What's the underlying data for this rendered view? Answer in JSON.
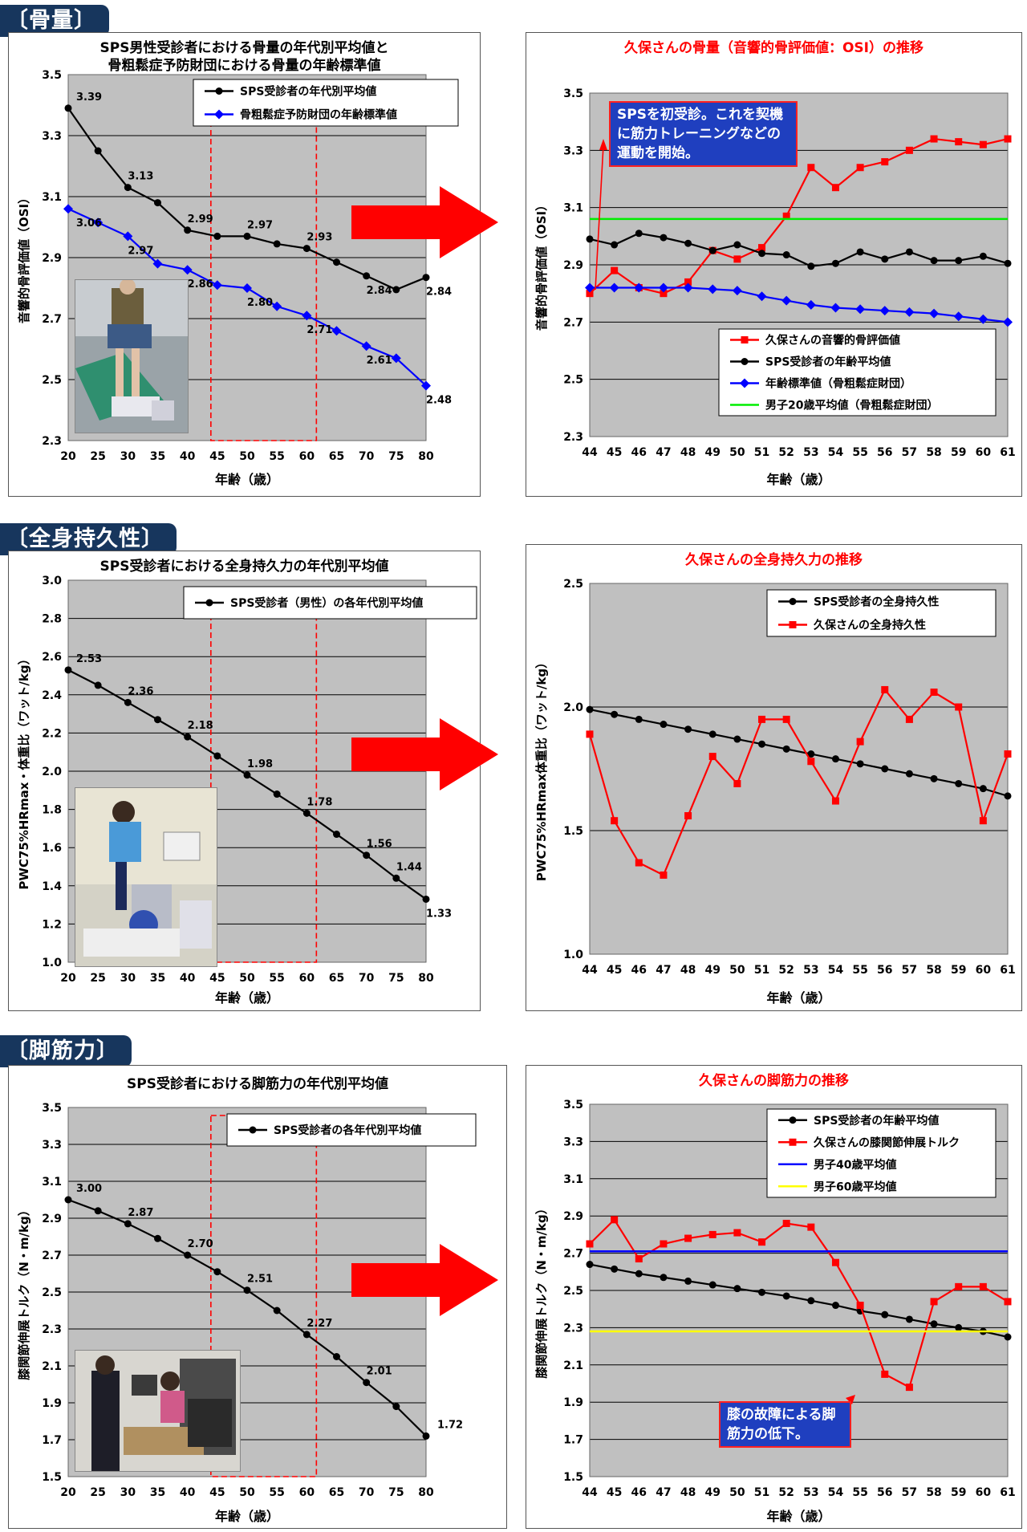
{
  "sections": {
    "bone": "〔骨量〕",
    "endurance": "〔全身持久性〕",
    "leg": "〔脚筋力〕"
  },
  "colors": {
    "plot_bg": "#c0c0c0",
    "black_series": "#000000",
    "red_series": "#ff0000",
    "blue_series": "#0000ff",
    "green_line": "#00ee00",
    "blue_line": "#0000ff",
    "yellow_line": "#ffff00",
    "arrow": "#ff0000",
    "section_label": "#17365d"
  },
  "annotations": {
    "first_visit": "SPSを初受診。これを契機に筋力トレーニングなどの運動を開始。",
    "knee": "膝の故障による脚筋力の低下。"
  },
  "chart_data": [
    {
      "id": "bone_avg",
      "type": "line",
      "title": "SPS男性受診者における骨量の年代別平均値と骨粗鬆症予防財団における骨量の年齢標準値",
      "title_lines": [
        "SPS男性受診者における骨量の年代別平均値と",
        "骨粗鬆症予防財団における骨量の年齢標準値"
      ],
      "title_color": "#000000",
      "xlabel": "年齢（歳）",
      "ylabel": "音響的骨評価値（OSI）",
      "ylim": [
        2.3,
        3.5
      ],
      "yticks": [
        "2.3",
        "2.5",
        "2.7",
        "2.9",
        "3.1",
        "3.3",
        "3.5"
      ],
      "x": [
        "20",
        "25",
        "30",
        "35",
        "40",
        "45",
        "50",
        "55",
        "60",
        "65",
        "70",
        "75",
        "80"
      ],
      "highlight_range": [
        "45",
        "60"
      ],
      "grid": true,
      "legend_position": "top-right",
      "series": [
        {
          "name": "SPS受診者の年代別平均値",
          "color": "#000000",
          "marker": "circle",
          "values": [
            3.39,
            3.25,
            3.13,
            3.08,
            2.99,
            2.97,
            2.97,
            2.945,
            2.93,
            2.885,
            2.84,
            2.795,
            2.835
          ],
          "labels": [
            "3.39",
            "",
            "3.13",
            "",
            "2.99",
            "",
            "2.97",
            "",
            "2.93",
            "",
            "2.84",
            "",
            "2.84"
          ]
        },
        {
          "name": "骨粗鬆症予防財団の年齢標準値",
          "color": "#0000ff",
          "marker": "diamond",
          "values": [
            3.06,
            3.015,
            2.97,
            2.88,
            2.86,
            2.81,
            2.8,
            2.74,
            2.71,
            2.66,
            2.61,
            2.57,
            2.48
          ],
          "labels": [
            "3.06",
            "",
            "2.97",
            "",
            "2.86",
            "",
            "2.80",
            "",
            "2.71",
            "",
            "2.61",
            "",
            "2.48"
          ]
        }
      ]
    },
    {
      "id": "bone_kubo",
      "type": "line",
      "title": "久保さんの骨量（音響的骨評価値：OSI）の推移",
      "title_lines": [
        "久保さんの骨量（音響的骨評価値：OSI）の推移"
      ],
      "title_color": "#ff0000",
      "xlabel": "年齢（歳）",
      "ylabel": "音響的骨評価値（OSI）",
      "ylim": [
        2.3,
        3.5
      ],
      "yticks": [
        "2.3",
        "2.5",
        "2.7",
        "2.9",
        "3.1",
        "3.3",
        "3.5"
      ],
      "x": [
        "44",
        "45",
        "46",
        "47",
        "48",
        "49",
        "50",
        "51",
        "52",
        "53",
        "54",
        "55",
        "56",
        "57",
        "58",
        "59",
        "60",
        "61"
      ],
      "grid": true,
      "legend_position": "bottom-right",
      "series": [
        {
          "name": "久保さんの音響的骨評価値",
          "color": "#ff0000",
          "marker": "square",
          "values": [
            2.8,
            2.88,
            2.82,
            2.8,
            2.84,
            2.95,
            2.92,
            2.96,
            3.07,
            3.24,
            3.17,
            3.24,
            3.26,
            3.3,
            3.34,
            3.33,
            3.32,
            3.34
          ]
        },
        {
          "name": "SPS受診者の年齢平均値",
          "color": "#000000",
          "marker": "circle",
          "values": [
            2.99,
            2.97,
            3.01,
            2.995,
            2.975,
            2.95,
            2.97,
            2.94,
            2.935,
            2.895,
            2.905,
            2.945,
            2.92,
            2.945,
            2.915,
            2.915,
            2.93,
            2.905
          ]
        },
        {
          "name": "年齢標準値（骨粗鬆症財団）",
          "color": "#0000ff",
          "marker": "diamond",
          "values": [
            2.82,
            2.82,
            2.82,
            2.82,
            2.82,
            2.815,
            2.81,
            2.79,
            2.775,
            2.76,
            2.75,
            2.745,
            2.74,
            2.735,
            2.73,
            2.72,
            2.71,
            2.7
          ]
        },
        {
          "name": "男子20歳平均値（骨粗鬆症財団）",
          "color": "#00ee00",
          "marker": "none",
          "constant": 3.06
        }
      ]
    },
    {
      "id": "endurance_avg",
      "type": "line",
      "title": "SPS受診者における全身持久力の年代別平均値",
      "title_lines": [
        "SPS受診者における全身持久力の年代別平均値"
      ],
      "title_color": "#000000",
      "xlabel": "年齢（歳）",
      "ylabel": "PWC75%HRmax・体重比（ワット/kg）",
      "ylim": [
        1.0,
        3.0
      ],
      "yticks": [
        "1.0",
        "1.2",
        "1.4",
        "1.6",
        "1.8",
        "2.0",
        "2.2",
        "2.4",
        "2.6",
        "2.8",
        "3.0"
      ],
      "x": [
        "20",
        "25",
        "30",
        "35",
        "40",
        "45",
        "50",
        "55",
        "60",
        "65",
        "70",
        "75",
        "80"
      ],
      "highlight_range": [
        "45",
        "60"
      ],
      "grid": true,
      "legend_position": "top-right",
      "series": [
        {
          "name": "SPS受診者（男性）の各年代別平均値",
          "color": "#000000",
          "marker": "circle",
          "values": [
            2.53,
            2.45,
            2.36,
            2.27,
            2.18,
            2.08,
            1.98,
            1.88,
            1.78,
            1.67,
            1.56,
            1.44,
            1.33
          ],
          "labels": [
            "2.53",
            "",
            "2.36",
            "",
            "2.18",
            "",
            "1.98",
            "",
            "1.78",
            "",
            "1.56",
            "1.44",
            "1.33"
          ]
        }
      ]
    },
    {
      "id": "endurance_kubo",
      "type": "line",
      "title": "久保さんの全身持久力の推移",
      "title_lines": [
        "久保さんの全身持久力の推移"
      ],
      "title_color": "#ff0000",
      "xlabel": "年齢（歳）",
      "ylabel": "PWC75%HRmax体重比（ワット/kg）",
      "ylim": [
        1.0,
        2.5
      ],
      "yticks": [
        "1.0",
        "1.5",
        "2.0",
        "2.5"
      ],
      "x": [
        "44",
        "45",
        "46",
        "47",
        "48",
        "49",
        "50",
        "51",
        "52",
        "53",
        "54",
        "55",
        "56",
        "57",
        "58",
        "59",
        "60",
        "61"
      ],
      "grid": true,
      "legend_position": "top-right",
      "series": [
        {
          "name": "SPS受診者の全身持久性",
          "color": "#000000",
          "marker": "circle",
          "values": [
            1.99,
            1.97,
            1.95,
            1.93,
            1.91,
            1.89,
            1.87,
            1.85,
            1.83,
            1.81,
            1.79,
            1.77,
            1.75,
            1.73,
            1.71,
            1.69,
            1.67,
            1.64
          ]
        },
        {
          "name": "久保さんの全身持久性",
          "color": "#ff0000",
          "marker": "square",
          "values": [
            1.89,
            1.54,
            1.37,
            1.32,
            1.56,
            1.8,
            1.69,
            1.95,
            1.95,
            1.78,
            1.62,
            1.86,
            2.07,
            1.95,
            2.06,
            2.0,
            1.54,
            1.81
          ]
        }
      ]
    },
    {
      "id": "leg_avg",
      "type": "line",
      "title": "SPS受診者における脚筋力の年代別平均値",
      "title_lines": [
        "SPS受診者における脚筋力の年代別平均値"
      ],
      "title_color": "#000000",
      "xlabel": "年齢（歳）",
      "ylabel": "膝関節伸展トルク（N・m/kg）",
      "ylim": [
        1.5,
        3.5
      ],
      "yticks": [
        "1.5",
        "1.7",
        "1.9",
        "2.1",
        "2.3",
        "2.5",
        "2.7",
        "2.9",
        "3.1",
        "3.3",
        "3.5"
      ],
      "x": [
        "20",
        "25",
        "30",
        "35",
        "40",
        "45",
        "50",
        "55",
        "60",
        "65",
        "70",
        "75",
        "80"
      ],
      "highlight_range": [
        "45",
        "60"
      ],
      "grid": true,
      "legend_position": "top-right",
      "series": [
        {
          "name": "SPS受診者の各年代別平均値",
          "color": "#000000",
          "marker": "circle",
          "values": [
            3.0,
            2.94,
            2.87,
            2.79,
            2.7,
            2.61,
            2.51,
            2.4,
            2.27,
            2.15,
            2.01,
            1.88,
            1.72
          ],
          "labels": [
            "3.00",
            "",
            "2.87",
            "",
            "2.70",
            "",
            "2.51",
            "",
            "2.27",
            "",
            "2.01",
            "",
            "1.72"
          ]
        }
      ]
    },
    {
      "id": "leg_kubo",
      "type": "line",
      "title": "久保さんの脚筋力の推移",
      "title_lines": [
        "久保さんの脚筋力の推移"
      ],
      "title_color": "#ff0000",
      "xlabel": "年齢（歳）",
      "ylabel": "膝関節伸展トルク（N・m/kg）",
      "ylim": [
        1.5,
        3.5
      ],
      "yticks": [
        "1.5",
        "1.7",
        "1.9",
        "2.1",
        "2.3",
        "2.5",
        "2.7",
        "2.9",
        "3.1",
        "3.3",
        "3.5"
      ],
      "x": [
        "44",
        "45",
        "46",
        "47",
        "48",
        "49",
        "50",
        "51",
        "52",
        "53",
        "54",
        "55",
        "56",
        "57",
        "58",
        "59",
        "60",
        "61"
      ],
      "grid": true,
      "legend_position": "top-right",
      "series": [
        {
          "name": "SPS受診者の年齢平均値",
          "color": "#000000",
          "marker": "circle",
          "values": [
            2.64,
            2.615,
            2.59,
            2.57,
            2.55,
            2.53,
            2.51,
            2.49,
            2.47,
            2.445,
            2.42,
            2.39,
            2.37,
            2.345,
            2.32,
            2.3,
            2.28,
            2.25
          ]
        },
        {
          "name": "久保さんの膝関節伸展トルク",
          "color": "#ff0000",
          "marker": "square",
          "values": [
            2.75,
            2.88,
            2.67,
            2.75,
            2.78,
            2.8,
            2.81,
            2.76,
            2.86,
            2.84,
            2.65,
            2.42,
            2.05,
            1.98,
            2.44,
            2.52,
            2.52,
            2.44
          ]
        },
        {
          "name": "男子40歳平均値",
          "color": "#0000ff",
          "marker": "none",
          "constant": 2.71
        },
        {
          "name": "男子60歳平均値",
          "color": "#ffff00",
          "marker": "none",
          "constant": 2.28
        }
      ]
    }
  ]
}
